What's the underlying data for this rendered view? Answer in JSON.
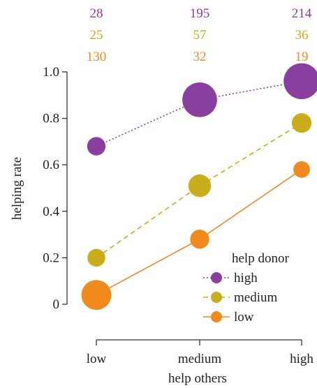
{
  "chart_data": {
    "type": "scatter",
    "title": "",
    "xlabel": "help others",
    "ylabel": "helping rate",
    "categories": [
      "low",
      "medium",
      "high"
    ],
    "ylim": [
      0,
      1.0
    ],
    "yticks": [
      "0",
      "0.2",
      "0.4",
      "0.6",
      "0.8",
      "1.0"
    ],
    "grid": false,
    "legend_title": "help donor",
    "legend_position": "bottom-right",
    "series": [
      {
        "name": "high",
        "color": "#8a3fa0",
        "line_style": "dotted",
        "values": [
          0.68,
          0.88,
          0.96
        ],
        "counts": [
          "28",
          "195",
          "214"
        ]
      },
      {
        "name": "medium",
        "color": "#c9ad1a",
        "line_style": "dashed",
        "values": [
          0.2,
          0.51,
          0.78
        ],
        "counts": [
          "25",
          "57",
          "36"
        ]
      },
      {
        "name": "low",
        "color": "#f08a1c",
        "line_style": "solid",
        "values": [
          0.04,
          0.28,
          0.58
        ],
        "counts": [
          "130",
          "32",
          "19"
        ]
      }
    ]
  }
}
